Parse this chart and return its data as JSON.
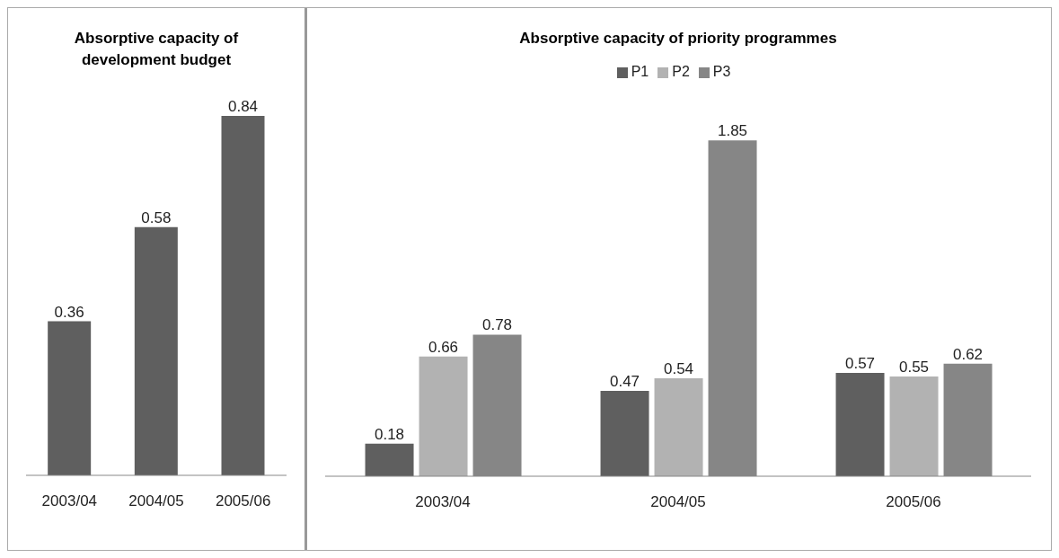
{
  "chart_data": [
    {
      "type": "bar",
      "title": "Absorptive capacity of development budget",
      "categories": [
        "2003/04",
        "2004/05",
        "2005/06"
      ],
      "values": [
        0.36,
        0.58,
        0.84
      ],
      "color": "#5f5f5f",
      "data_labels": true,
      "grid": false,
      "legend": false
    },
    {
      "type": "bar",
      "title": "Absorptive capacity of priority programmes",
      "categories": [
        "2003/04",
        "2004/05",
        "2005/06"
      ],
      "series": [
        {
          "name": "P1",
          "color": "#5f5f5f",
          "values": [
            0.18,
            0.47,
            0.57
          ]
        },
        {
          "name": "P2",
          "color": "#b2b2b2",
          "values": [
            0.66,
            0.54,
            0.55
          ]
        },
        {
          "name": "P3",
          "color": "#868686",
          "values": [
            0.78,
            1.85,
            0.62
          ]
        }
      ],
      "data_labels": true,
      "grid": false,
      "legend": "top"
    }
  ]
}
